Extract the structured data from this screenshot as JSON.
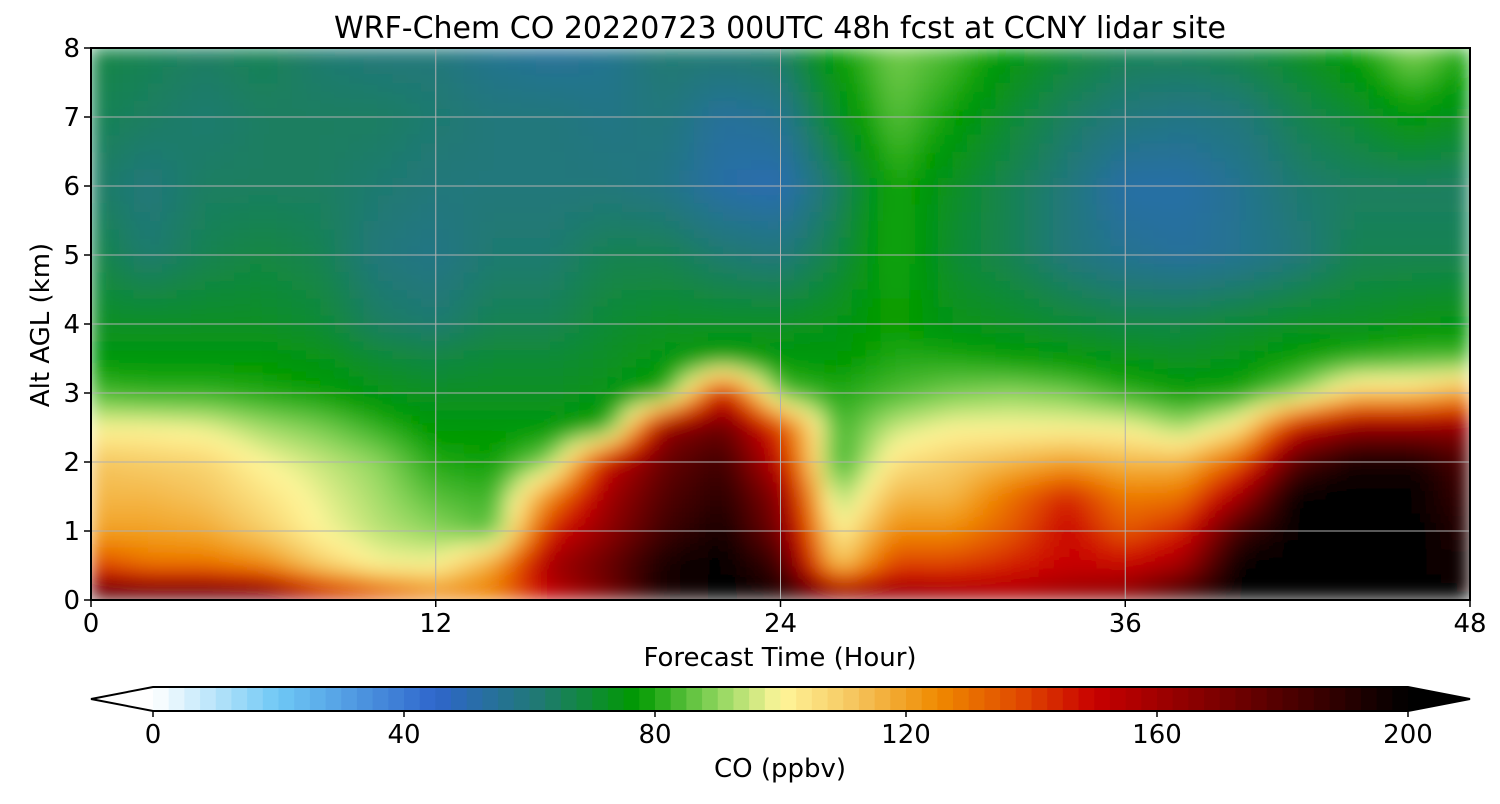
{
  "chart_data": {
    "type": "heatmap",
    "title": "WRF-Chem CO  20220723 00UTC 48h fcst at CCNY lidar site",
    "xlabel": "Forecast Time (Hour)",
    "ylabel": "Alt AGL (km)",
    "xlim": [
      0,
      48
    ],
    "ylim": [
      0,
      8
    ],
    "x_ticks": [
      "0",
      "12",
      "24",
      "36",
      "48"
    ],
    "y_ticks": [
      "0",
      "1",
      "2",
      "3",
      "4",
      "5",
      "6",
      "7",
      "8"
    ],
    "grid": true,
    "colorbar": {
      "label": "CO  (ppbv)",
      "range": [
        0,
        200
      ],
      "ticks": [
        "0",
        "40",
        "80",
        "120",
        "160",
        "200"
      ],
      "extend": "both",
      "stops": [
        {
          "v": 0,
          "c": "#ffffff"
        },
        {
          "v": 20,
          "c": "#6ec8f5"
        },
        {
          "v": 45,
          "c": "#2f66cc"
        },
        {
          "v": 62,
          "c": "#1f7a70"
        },
        {
          "v": 77,
          "c": "#009a00"
        },
        {
          "v": 90,
          "c": "#8fd65e"
        },
        {
          "v": 100,
          "c": "#fff69a"
        },
        {
          "v": 112,
          "c": "#f5c45c"
        },
        {
          "v": 125,
          "c": "#f08a00"
        },
        {
          "v": 138,
          "c": "#e04a00"
        },
        {
          "v": 150,
          "c": "#c80000"
        },
        {
          "v": 170,
          "c": "#7a0000"
        },
        {
          "v": 200,
          "c": "#000000"
        }
      ]
    },
    "hours": [
      0,
      2,
      4,
      6,
      8,
      10,
      12,
      14,
      16,
      18,
      20,
      22,
      24,
      26,
      28,
      30,
      32,
      34,
      36,
      38,
      40,
      42,
      44,
      46,
      48
    ],
    "altitudes_km": [
      0,
      0.5,
      1,
      1.5,
      2,
      2.5,
      3,
      3.5,
      4,
      5,
      6,
      7,
      8
    ],
    "values_ppbv": [
      [
        190,
        190,
        190,
        185,
        160,
        145,
        130,
        130,
        150,
        170,
        195,
        200,
        195,
        180,
        170,
        165,
        160,
        165,
        170,
        190,
        200,
        200,
        200,
        200,
        200
      ],
      [
        140,
        130,
        130,
        125,
        110,
        100,
        100,
        120,
        160,
        175,
        195,
        200,
        185,
        110,
        140,
        140,
        145,
        150,
        150,
        160,
        200,
        200,
        200,
        200,
        195
      ],
      [
        120,
        120,
        118,
        110,
        100,
        94,
        90,
        85,
        145,
        165,
        185,
        195,
        170,
        100,
        125,
        125,
        135,
        150,
        135,
        145,
        185,
        200,
        200,
        200,
        190
      ],
      [
        115,
        115,
        112,
        105,
        98,
        92,
        85,
        82,
        125,
        160,
        180,
        190,
        165,
        90,
        115,
        115,
        130,
        145,
        128,
        130,
        160,
        200,
        200,
        200,
        185
      ],
      [
        112,
        110,
        108,
        100,
        95,
        90,
        80,
        78,
        90,
        150,
        175,
        185,
        150,
        80,
        105,
        110,
        115,
        120,
        115,
        115,
        135,
        180,
        195,
        195,
        180
      ],
      [
        100,
        100,
        98,
        92,
        88,
        82,
        76,
        76,
        76,
        80,
        165,
        175,
        140,
        82,
        95,
        100,
        100,
        100,
        100,
        92,
        105,
        150,
        165,
        165,
        165
      ],
      [
        84,
        82,
        82,
        80,
        78,
        74,
        72,
        72,
        72,
        74,
        80,
        150,
        85,
        80,
        84,
        88,
        90,
        88,
        82,
        78,
        80,
        90,
        110,
        110,
        120
      ],
      [
        76,
        76,
        76,
        76,
        74,
        70,
        68,
        70,
        70,
        72,
        75,
        78,
        76,
        76,
        80,
        80,
        78,
        76,
        74,
        72,
        74,
        78,
        82,
        84,
        84
      ],
      [
        72,
        72,
        72,
        72,
        70,
        64,
        62,
        66,
        66,
        70,
        72,
        72,
        72,
        74,
        78,
        74,
        72,
        70,
        68,
        68,
        70,
        72,
        72,
        74,
        75
      ],
      [
        68,
        62,
        66,
        68,
        66,
        60,
        58,
        62,
        62,
        66,
        66,
        62,
        60,
        68,
        80,
        70,
        66,
        60,
        56,
        54,
        56,
        60,
        66,
        66,
        66
      ],
      [
        64,
        60,
        64,
        64,
        64,
        62,
        60,
        60,
        60,
        60,
        58,
        52,
        50,
        64,
        80,
        72,
        66,
        60,
        52,
        52,
        56,
        62,
        64,
        64,
        64
      ],
      [
        66,
        64,
        62,
        64,
        64,
        64,
        62,
        60,
        60,
        58,
        60,
        54,
        56,
        72,
        85,
        78,
        70,
        64,
        60,
        58,
        60,
        66,
        70,
        76,
        72
      ],
      [
        68,
        66,
        64,
        66,
        62,
        60,
        60,
        56,
        54,
        56,
        62,
        62,
        64,
        78,
        88,
        84,
        76,
        70,
        66,
        66,
        68,
        72,
        78,
        90,
        80
      ]
    ]
  }
}
